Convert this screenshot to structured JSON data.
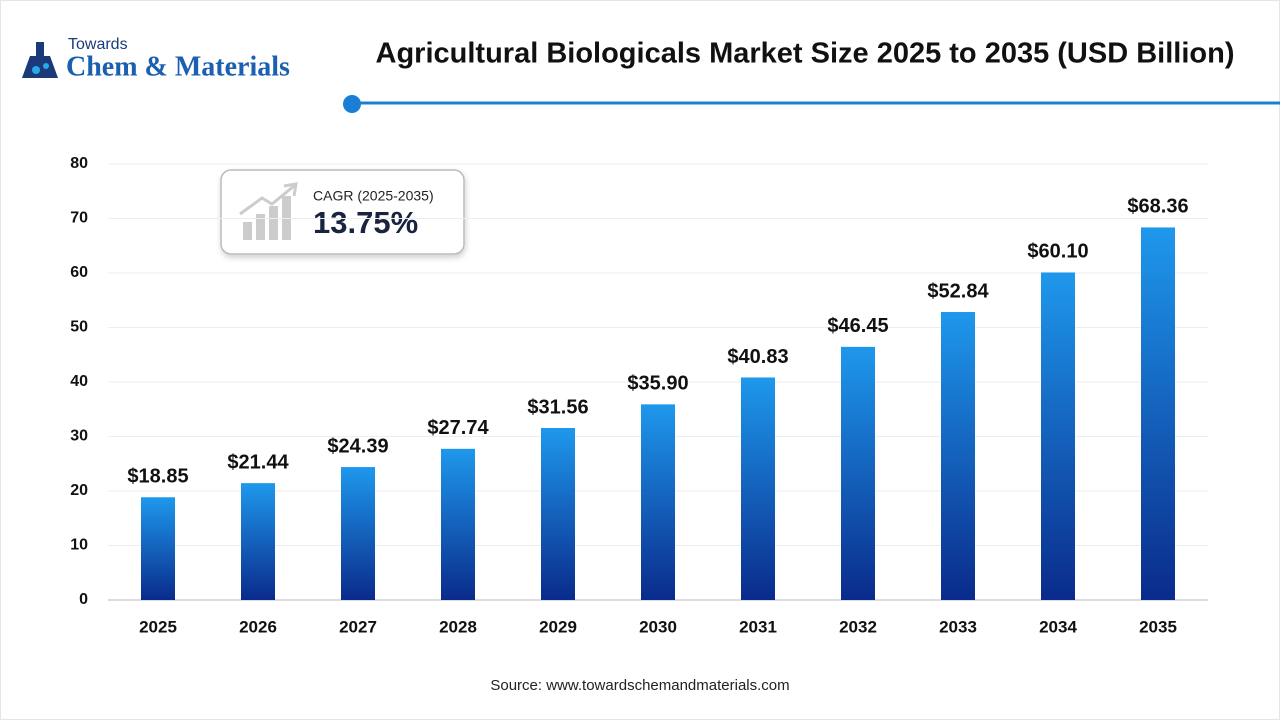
{
  "logo": {
    "top": "Towards",
    "main": "Chem & Materials"
  },
  "cagr": {
    "label": "CAGR (2025-2035)",
    "value": "13.75%"
  },
  "chart_data": {
    "type": "bar",
    "title": "Agricultural Biologicals Market Size 2025 to 2035 (USD Billion)",
    "categories": [
      "2025",
      "2026",
      "2027",
      "2028",
      "2029",
      "2030",
      "2031",
      "2032",
      "2033",
      "2034",
      "2035"
    ],
    "values": [
      18.85,
      21.44,
      24.39,
      27.74,
      31.56,
      35.9,
      40.83,
      46.45,
      52.84,
      60.1,
      68.36
    ],
    "value_labels": [
      "$18.85",
      "$21.44",
      "$24.39",
      "$27.74",
      "$31.56",
      "$35.90",
      "$40.83",
      "$46.45",
      "$52.84",
      "$60.10",
      "$68.36"
    ],
    "color": [
      "#1e98ec",
      "#0a2b8b"
    ],
    "ylim": [
      0,
      80
    ],
    "yticks": [
      0,
      10,
      20,
      30,
      40,
      50,
      60,
      70,
      80
    ],
    "grid": true,
    "source": "Source: www.towardschemandmaterials.com"
  }
}
